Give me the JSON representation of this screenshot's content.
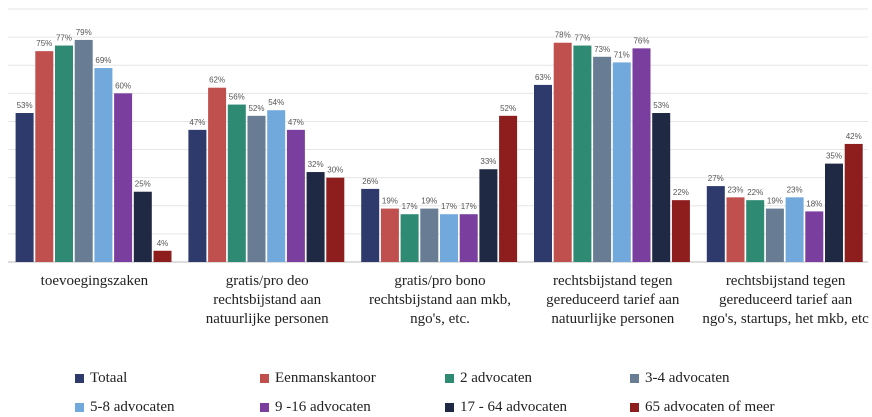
{
  "chart_data": {
    "type": "bar",
    "categories": [
      "toevoegingszaken",
      "gratis/pro deo rechtsbijstand aan natuurlijke personen",
      "gratis/pro bono rechtsbijstand aan mkb, ngo's, etc.",
      "rechtsbijstand tegen gereduceerd tarief aan natuurlijke personen",
      "rechtsbijstand tegen gereduceerd tarief aan ngo's, startups, het mkb, etc"
    ],
    "series": [
      {
        "name": "Totaal",
        "color": "#2d3a6b",
        "values": [
          53,
          47,
          26,
          63,
          27
        ],
        "value_labels": [
          "53%",
          "47%",
          "26%",
          "63%",
          "27%"
        ]
      },
      {
        "name": "Eenmanskantoor",
        "color": "#c0504d",
        "values": [
          75,
          62,
          19,
          78,
          23
        ],
        "value_labels": [
          "75%",
          "62%",
          "19%",
          "78%",
          "23%"
        ]
      },
      {
        "name": "2 advocaten",
        "color": "#2f8a74",
        "values": [
          77,
          56,
          17,
          77,
          22
        ],
        "value_labels": [
          "77%",
          "56%",
          "17%",
          "77%",
          "22%"
        ]
      },
      {
        "name": "3-4 advocaten",
        "color": "#687d93",
        "values": [
          79,
          52,
          19,
          73,
          19
        ],
        "value_labels": [
          "79%",
          "52%",
          "19%",
          "73%",
          "19%"
        ]
      },
      {
        "name": "5-8 advocaten",
        "color": "#72a9dd",
        "values": [
          69,
          54,
          17,
          71,
          23
        ],
        "value_labels": [
          "69%",
          "54%",
          "17%",
          "71%",
          "23%"
        ]
      },
      {
        "name": "9 -16 advocaten",
        "color": "#7a3f9e",
        "values": [
          60,
          47,
          17,
          76,
          18
        ],
        "value_labels": [
          "60%",
          "47%",
          "17%",
          "76%",
          "18%"
        ]
      },
      {
        "name": "17 - 64 advocaten",
        "color": "#1f2944",
        "values": [
          25,
          32,
          33,
          53,
          35
        ],
        "value_labels": [
          "25%",
          "32%",
          "33%",
          "53%",
          "35%"
        ]
      },
      {
        "name": "65 advocaten of meer",
        "color": "#8e1d1d",
        "values": [
          4,
          30,
          52,
          22,
          42
        ],
        "value_labels": [
          "4%",
          "30%",
          "52%",
          "22%",
          "42%"
        ]
      }
    ],
    "ylim": [
      0,
      90
    ],
    "yticks": [
      0,
      10,
      20,
      30,
      40,
      50,
      60,
      70,
      80,
      90
    ],
    "grid": true,
    "legend": "bottom"
  }
}
